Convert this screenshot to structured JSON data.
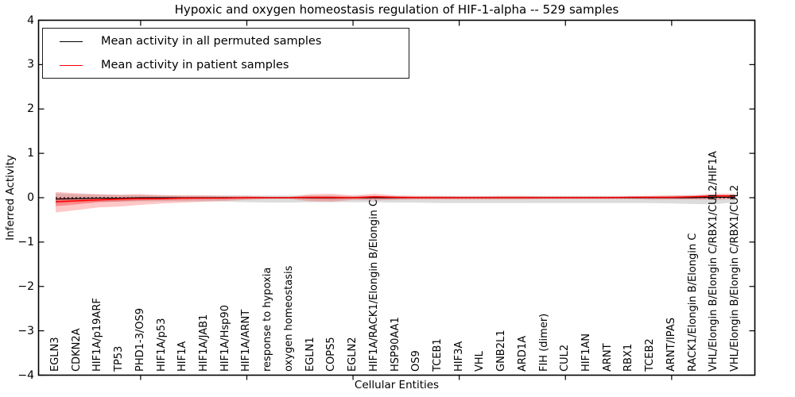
{
  "title": "Hypoxic and oxygen homeostasis regulation of HIF-1-alpha -- 529 samples",
  "legend": {
    "items": [
      {
        "label": "Mean activity in all permuted samples",
        "color": "#000000"
      },
      {
        "label": "Mean activity in patient samples",
        "color": "#ff0000"
      }
    ]
  },
  "axes": {
    "ylabel": "Inferred Activity",
    "xlabel": "Cellular Entities"
  },
  "chart_data": {
    "type": "line",
    "title": "Hypoxic and oxygen homeostasis regulation of HIF-1-alpha -- 529 samples",
    "xlabel": "Cellular Entities",
    "ylabel": "Inferred Activity",
    "ylim": [
      -4,
      4
    ],
    "yticks": [
      4,
      3,
      2,
      1,
      0,
      -1,
      -2,
      -3,
      -4
    ],
    "ytick_labels": [
      "4",
      "3",
      "2",
      "1",
      "0",
      "−1",
      "−2",
      "−3",
      "−4"
    ],
    "grid": false,
    "legend_position": "upper left",
    "samples_count_in_title": 529,
    "categories": [
      "EGLN3",
      "CDKN2A",
      "HIF1A/p19ARF",
      "TP53",
      "PHD1-3/OS9",
      "HIF1A/p53",
      "HIF1A",
      "HIF1A/JAB1",
      "HIF1A/Hsp90",
      "HIF1A/ARNT",
      "response to hypoxia",
      "oxygen homeostasis",
      "EGLN1",
      "COPS5",
      "EGLN2",
      "HIF1A/RACK1/Elongin B/Elongin C",
      "HSP90AA1",
      "OS9",
      "TCEB1",
      "HIF3A",
      "VHL",
      "GNB2L1",
      "ARD1A",
      "FIH (dimer)",
      "CUL2",
      "HIF1AN",
      "ARNT",
      "RBX1",
      "TCEB2",
      "ARNT/IPAS",
      "RACK1/Elongin B/Elongin C",
      "VHL/Elongin B/Elongin C/RBX1/CUL2/HIF1A",
      "VHL/Elongin B/Elongin C/RBX1/CUL2"
    ],
    "series": [
      {
        "name": "Mean activity in all permuted samples",
        "color": "#000000",
        "values": [
          -0.03,
          -0.02,
          -0.01,
          -0.01,
          0,
          0,
          0,
          0,
          0,
          0,
          0,
          0,
          0,
          0,
          0,
          0,
          0,
          0,
          0,
          0,
          0,
          0,
          0,
          0,
          0,
          0,
          0,
          0,
          0,
          0,
          0,
          0.01,
          0.01
        ]
      },
      {
        "name": "Mean activity in patient samples",
        "color": "#ff0000",
        "values": [
          -0.09,
          -0.07,
          -0.05,
          -0.03,
          -0.02,
          -0.02,
          -0.01,
          -0.01,
          -0.01,
          0,
          0,
          0,
          0.01,
          0.01,
          0,
          0.02,
          0.01,
          0,
          0,
          0,
          0,
          0,
          0,
          0,
          0,
          0,
          0,
          0.01,
          0.01,
          0.01,
          0.02,
          0.04,
          0.04
        ]
      }
    ],
    "bands": [
      {
        "name": "permuted-samples-range",
        "color": "rgba(130,130,130,0.28)",
        "upper": [
          0.1,
          0.08,
          0.07,
          0.06,
          0.06,
          0.05,
          0.05,
          0.05,
          0.05,
          0.05,
          0.05,
          0.05,
          0.05,
          0.05,
          0.04,
          0.04,
          0.04,
          0.04,
          0.04,
          0.04,
          0.04,
          0.04,
          0.04,
          0.04,
          0.04,
          0.04,
          0.04,
          0.04,
          0.04,
          0.05,
          0.05,
          0.06,
          0.06
        ],
        "lower": [
          -0.12,
          -0.1,
          -0.09,
          -0.09,
          -0.08,
          -0.08,
          -0.08,
          -0.08,
          -0.09,
          -0.1,
          -0.11,
          -0.11,
          -0.1,
          -0.1,
          -0.1,
          -0.1,
          -0.11,
          -0.11,
          -0.12,
          -0.12,
          -0.12,
          -0.12,
          -0.12,
          -0.12,
          -0.12,
          -0.12,
          -0.12,
          -0.12,
          -0.12,
          -0.13,
          -0.14,
          -0.15,
          -0.1
        ]
      },
      {
        "name": "patient-samples-range-outer",
        "color": "rgba(255,0,0,0.22)",
        "upper": [
          0.13,
          0.1,
          0.08,
          0.07,
          0.08,
          0.06,
          0.05,
          0.05,
          0.04,
          0.04,
          0.02,
          0.02,
          0.08,
          0.09,
          0.05,
          0.09,
          0.05,
          0.04,
          0.04,
          0.03,
          0.03,
          0.04,
          0.04,
          0.03,
          0.03,
          0.03,
          0.03,
          0.03,
          0.04,
          0.05,
          0.06,
          0.09,
          0.09
        ],
        "lower": [
          -0.33,
          -0.28,
          -0.22,
          -0.2,
          -0.16,
          -0.13,
          -0.11,
          -0.09,
          -0.07,
          -0.05,
          -0.03,
          -0.03,
          -0.08,
          -0.09,
          -0.05,
          -0.06,
          -0.05,
          -0.04,
          -0.04,
          -0.04,
          -0.04,
          -0.04,
          -0.04,
          -0.03,
          -0.03,
          -0.03,
          -0.03,
          -0.03,
          -0.04,
          -0.04,
          -0.04,
          -0.05,
          -0.03
        ]
      },
      {
        "name": "patient-samples-range-inner",
        "color": "rgba(255,0,0,0.30)",
        "upper": [
          0.0,
          -0.01,
          -0.01,
          -0.01,
          0.0,
          0.0,
          0.01,
          0.01,
          0.01,
          0.01,
          0.01,
          0.01,
          0.02,
          0.02,
          0.01,
          0.04,
          0.02,
          0.01,
          0.01,
          0.01,
          0.01,
          0.01,
          0.01,
          0.01,
          0.01,
          0.01,
          0.01,
          0.02,
          0.02,
          0.02,
          0.03,
          0.06,
          0.06
        ],
        "lower": [
          -0.19,
          -0.15,
          -0.1,
          -0.08,
          -0.06,
          -0.05,
          -0.04,
          -0.03,
          -0.03,
          -0.02,
          -0.01,
          -0.01,
          -0.03,
          -0.04,
          -0.02,
          -0.02,
          -0.02,
          -0.01,
          -0.01,
          -0.01,
          -0.01,
          -0.01,
          -0.01,
          -0.01,
          -0.01,
          -0.01,
          -0.01,
          -0.01,
          -0.01,
          -0.01,
          -0.01,
          0.01,
          0.01
        ]
      }
    ],
    "zero_line": {
      "y": 0,
      "style": "dotted",
      "color": "#000000"
    }
  }
}
